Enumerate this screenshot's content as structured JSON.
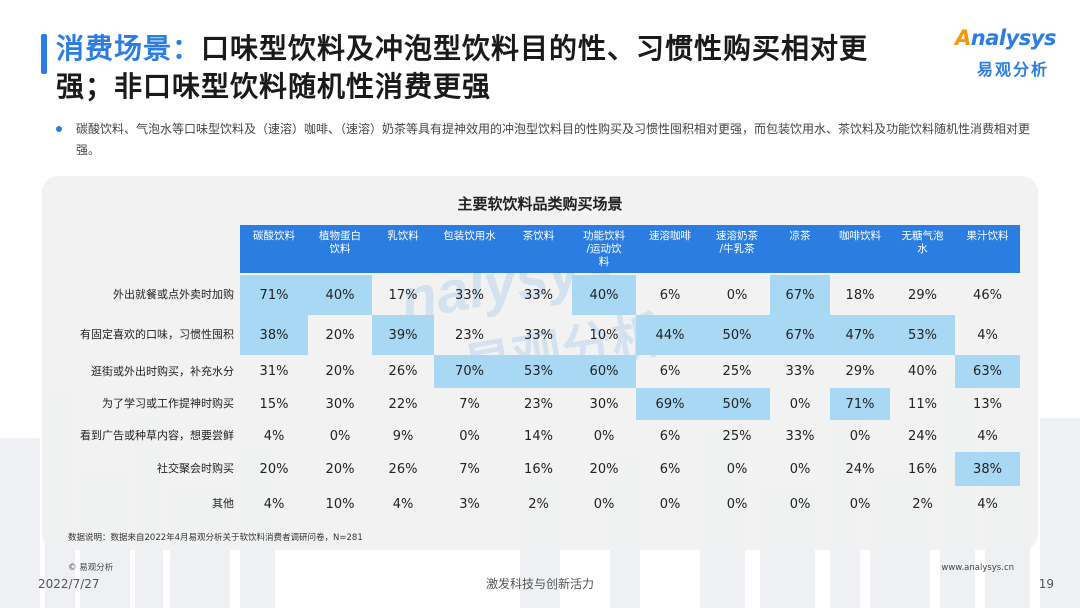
{
  "title": {
    "highlight": "消费场景：",
    "line1_rest": "口味型饮料及冲泡型饮料目的性、习惯性购买相对更",
    "line2": "强；非口味型饮料随机性消费更强"
  },
  "logo": {
    "en_prefix": "A",
    "en_rest": "nalysys",
    "cn": "易观分析"
  },
  "bullet": "碳酸饮料、气泡水等口味型饮料及（速溶）咖啡、（速溶）奶茶等具有提神效用的冲泡型饮料目的性购买及习惯性囤积相对更强，而包装饮用水、茶饮料及功能饮料随机性消费相对更强。",
  "watermark": {
    "en": "nalysys",
    "cn": "易观分析"
  },
  "chart_data": {
    "type": "table",
    "title": "主要软饮料品类购买场景",
    "columns": [
      "碳酸饮料",
      "植物蛋白饮料",
      "乳饮料",
      "包装饮用水",
      "茶饮料",
      "功能饮料/运动饮料",
      "速溶咖啡",
      "速溶奶茶/牛乳茶",
      "凉茶",
      "咖啡饮料",
      "无糖气泡水",
      "果汁饮料"
    ],
    "column_display": [
      [
        "碳酸饮料"
      ],
      [
        "植物蛋白",
        "饮料"
      ],
      [
        "乳饮料"
      ],
      [
        "包装饮用水"
      ],
      [
        "茶饮料"
      ],
      [
        "功能饮料",
        "/运动饮",
        "料"
      ],
      [
        "速溶咖啡"
      ],
      [
        "速溶奶茶",
        "/牛乳茶"
      ],
      [
        "凉茶"
      ],
      [
        "咖啡饮料"
      ],
      [
        "无糖气泡",
        "水"
      ],
      [
        "果汁饮料"
      ]
    ],
    "rows": [
      {
        "label": "外出就餐或点外卖时加购",
        "values": [
          "71%",
          "40%",
          "17%",
          "33%",
          "33%",
          "40%",
          "6%",
          "0%",
          "67%",
          "18%",
          "29%",
          "46%"
        ],
        "highlight": [
          true,
          true,
          false,
          false,
          false,
          true,
          false,
          false,
          true,
          false,
          false,
          false
        ]
      },
      {
        "label": "有固定喜欢的口味，习惯性囤积",
        "values": [
          "38%",
          "20%",
          "39%",
          "23%",
          "33%",
          "10%",
          "44%",
          "50%",
          "67%",
          "47%",
          "53%",
          "4%"
        ],
        "highlight": [
          true,
          false,
          true,
          false,
          false,
          false,
          true,
          true,
          true,
          true,
          true,
          false
        ]
      },
      {
        "label": "逛街或外出时购买，补充水分",
        "values": [
          "31%",
          "20%",
          "26%",
          "70%",
          "53%",
          "60%",
          "6%",
          "25%",
          "33%",
          "29%",
          "40%",
          "63%"
        ],
        "highlight": [
          false,
          false,
          false,
          true,
          true,
          true,
          false,
          false,
          false,
          false,
          false,
          true
        ]
      },
      {
        "label": "为了学习或工作提神时购买",
        "values": [
          "15%",
          "30%",
          "22%",
          "7%",
          "23%",
          "30%",
          "69%",
          "50%",
          "0%",
          "71%",
          "11%",
          "13%"
        ],
        "highlight": [
          false,
          false,
          false,
          false,
          false,
          false,
          true,
          true,
          false,
          true,
          false,
          false
        ]
      },
      {
        "label": "看到广告或种草内容，想要尝鲜",
        "values": [
          "4%",
          "0%",
          "9%",
          "0%",
          "14%",
          "0%",
          "6%",
          "25%",
          "33%",
          "0%",
          "24%",
          "4%"
        ],
        "highlight": [
          false,
          false,
          false,
          false,
          false,
          false,
          false,
          false,
          false,
          false,
          false,
          false
        ]
      },
      {
        "label": "社交聚会时购买",
        "values": [
          "20%",
          "20%",
          "26%",
          "7%",
          "16%",
          "20%",
          "6%",
          "0%",
          "0%",
          "24%",
          "16%",
          "38%"
        ],
        "highlight": [
          false,
          false,
          false,
          false,
          false,
          false,
          false,
          false,
          false,
          false,
          false,
          true
        ]
      },
      {
        "label": "其他",
        "values": [
          "4%",
          "10%",
          "4%",
          "3%",
          "2%",
          "0%",
          "0%",
          "0%",
          "0%",
          "0%",
          "2%",
          "4%"
        ],
        "highlight": [
          false,
          false,
          false,
          false,
          false,
          false,
          false,
          false,
          false,
          false,
          false,
          false
        ]
      }
    ],
    "highlight_color": "#a9d8f4",
    "header_color": "#2b7de1"
  },
  "note": "数据说明：数据来自2022年4月易观分析关于软饮料消费者调研问卷，N=281",
  "footer": {
    "copyright": "© 易观分析",
    "date": "2022/7/27",
    "slogan": "激发科技与创新活力",
    "site": "www.analysys.cn",
    "page": "19"
  },
  "colors": {
    "brand": "#2b7de1",
    "accent": "#f39800"
  }
}
